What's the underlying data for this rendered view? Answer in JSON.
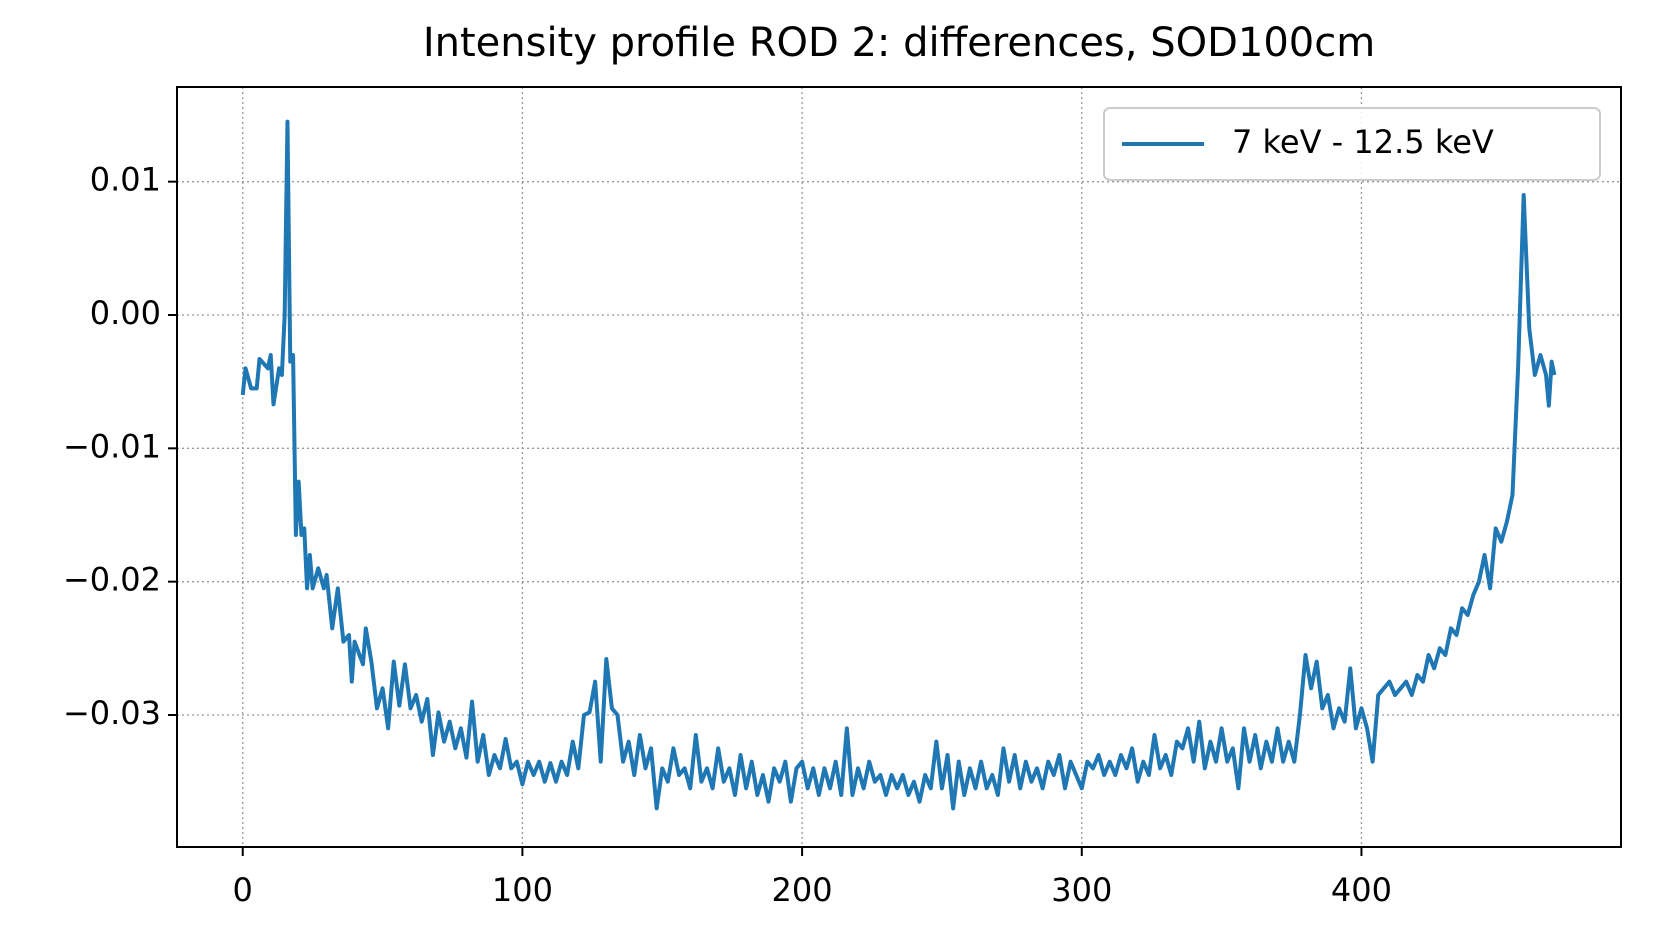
{
  "chart_data": {
    "type": "line",
    "title": "Intensity profile ROD 2: differences, SOD100cm",
    "x": [
      0,
      1,
      3,
      5,
      6,
      9,
      10,
      11,
      13,
      14,
      15,
      16,
      17,
      18,
      19,
      20,
      21,
      22,
      23,
      24,
      25,
      27,
      29,
      30,
      32,
      34,
      36,
      38,
      39,
      40,
      43,
      44,
      46,
      48,
      50,
      52,
      54,
      56,
      58,
      60,
      62,
      64,
      66,
      68,
      70,
      72,
      74,
      76,
      78,
      80,
      82,
      84,
      86,
      88,
      90,
      92,
      94,
      96,
      98,
      100,
      102,
      104,
      106,
      108,
      110,
      112,
      114,
      116,
      118,
      120,
      122,
      124,
      126,
      128,
      130,
      132,
      134,
      136,
      138,
      140,
      142,
      144,
      146,
      148,
      150,
      152,
      154,
      156,
      158,
      160,
      162,
      164,
      166,
      168,
      170,
      172,
      174,
      176,
      178,
      180,
      182,
      184,
      186,
      188,
      190,
      192,
      194,
      196,
      198,
      200,
      202,
      204,
      206,
      208,
      210,
      212,
      214,
      216,
      218,
      220,
      222,
      224,
      226,
      228,
      230,
      232,
      234,
      236,
      238,
      240,
      242,
      244,
      246,
      248,
      250,
      252,
      254,
      256,
      258,
      260,
      262,
      264,
      266,
      268,
      270,
      272,
      274,
      276,
      278,
      280,
      282,
      284,
      286,
      288,
      290,
      292,
      294,
      296,
      298,
      300,
      302,
      304,
      306,
      308,
      310,
      312,
      314,
      316,
      318,
      320,
      322,
      324,
      326,
      328,
      330,
      332,
      334,
      336,
      338,
      340,
      342,
      344,
      346,
      348,
      350,
      352,
      354,
      356,
      358,
      360,
      362,
      364,
      366,
      368,
      370,
      372,
      374,
      376,
      378,
      380,
      382,
      384,
      386,
      388,
      390,
      392,
      394,
      396,
      398,
      400,
      402,
      404,
      406,
      408,
      410,
      412,
      414,
      416,
      418,
      420,
      422,
      424,
      426,
      428,
      430,
      432,
      434,
      436,
      438,
      440,
      442,
      444,
      446,
      448,
      450,
      452,
      454,
      456,
      458,
      460,
      462,
      464,
      466,
      467,
      468,
      469
    ],
    "series": [
      {
        "name": "7 keV - 12.5 keV",
        "color": "#1f77b4",
        "values": [
          -0.006,
          -0.004,
          -0.0055,
          -0.0055,
          -0.0033,
          -0.004,
          -0.003,
          -0.0067,
          -0.004,
          -0.0045,
          0,
          0.0145,
          -0.0035,
          -0.003,
          -0.0165,
          -0.0125,
          -0.0165,
          -0.016,
          -0.0205,
          -0.018,
          -0.0205,
          -0.019,
          -0.0205,
          -0.0195,
          -0.0235,
          -0.0205,
          -0.0245,
          -0.024,
          -0.0275,
          -0.0245,
          -0.0262,
          -0.0235,
          -0.026,
          -0.0295,
          -0.028,
          -0.031,
          -0.026,
          -0.0293,
          -0.0262,
          -0.0295,
          -0.0285,
          -0.0305,
          -0.0288,
          -0.033,
          -0.0298,
          -0.032,
          -0.0305,
          -0.0325,
          -0.031,
          -0.0332,
          -0.029,
          -0.0335,
          -0.0315,
          -0.0345,
          -0.033,
          -0.034,
          -0.0318,
          -0.034,
          -0.0335,
          -0.0352,
          -0.0335,
          -0.0345,
          -0.0335,
          -0.035,
          -0.0336,
          -0.035,
          -0.0335,
          -0.0345,
          -0.032,
          -0.034,
          -0.03,
          -0.0298,
          -0.0275,
          -0.0335,
          -0.0258,
          -0.0295,
          -0.03,
          -0.0335,
          -0.032,
          -0.0345,
          -0.0315,
          -0.034,
          -0.0325,
          -0.037,
          -0.034,
          -0.035,
          -0.0325,
          -0.0345,
          -0.034,
          -0.0355,
          -0.0315,
          -0.035,
          -0.034,
          -0.0355,
          -0.0325,
          -0.035,
          -0.034,
          -0.036,
          -0.033,
          -0.0355,
          -0.0335,
          -0.036,
          -0.0345,
          -0.0365,
          -0.034,
          -0.035,
          -0.0335,
          -0.0365,
          -0.034,
          -0.0335,
          -0.0355,
          -0.034,
          -0.036,
          -0.034,
          -0.0355,
          -0.0335,
          -0.036,
          -0.031,
          -0.036,
          -0.034,
          -0.0355,
          -0.0335,
          -0.035,
          -0.0345,
          -0.036,
          -0.0345,
          -0.0355,
          -0.0345,
          -0.036,
          -0.035,
          -0.0365,
          -0.0345,
          -0.0355,
          -0.032,
          -0.0355,
          -0.033,
          -0.037,
          -0.0335,
          -0.036,
          -0.034,
          -0.0355,
          -0.0335,
          -0.0355,
          -0.0345,
          -0.036,
          -0.0325,
          -0.035,
          -0.033,
          -0.0355,
          -0.0335,
          -0.035,
          -0.034,
          -0.0355,
          -0.0335,
          -0.0345,
          -0.033,
          -0.0355,
          -0.0335,
          -0.0345,
          -0.0355,
          -0.0335,
          -0.034,
          -0.033,
          -0.0345,
          -0.0335,
          -0.0345,
          -0.033,
          -0.034,
          -0.0325,
          -0.035,
          -0.0335,
          -0.0345,
          -0.0315,
          -0.034,
          -0.033,
          -0.0345,
          -0.032,
          -0.0325,
          -0.031,
          -0.0335,
          -0.0305,
          -0.034,
          -0.032,
          -0.0335,
          -0.031,
          -0.0335,
          -0.0325,
          -0.0355,
          -0.031,
          -0.0335,
          -0.0315,
          -0.034,
          -0.032,
          -0.0335,
          -0.031,
          -0.0335,
          -0.032,
          -0.0335,
          -0.03,
          -0.0255,
          -0.028,
          -0.026,
          -0.0295,
          -0.0285,
          -0.031,
          -0.0295,
          -0.0305,
          -0.0265,
          -0.031,
          -0.0295,
          -0.031,
          -0.0335,
          -0.0285,
          -0.028,
          -0.0275,
          -0.0285,
          -0.028,
          -0.0275,
          -0.0285,
          -0.027,
          -0.0275,
          -0.0255,
          -0.0265,
          -0.025,
          -0.0255,
          -0.0235,
          -0.024,
          -0.022,
          -0.0225,
          -0.021,
          -0.02,
          -0.018,
          -0.0205,
          -0.016,
          -0.017,
          -0.0155,
          -0.0135,
          -0.004,
          0.009,
          -0.001,
          -0.0045,
          -0.003,
          -0.0045,
          -0.0068,
          -0.0035,
          -0.0045
        ]
      }
    ],
    "xlim": [
      -23.5,
      492.8
    ],
    "ylim": [
      -0.0399,
      0.0171
    ],
    "xticks": [
      0,
      100,
      200,
      300,
      400
    ],
    "yticks": [
      {
        "value": -0.03,
        "label": "−0.03"
      },
      {
        "value": -0.02,
        "label": "−0.02"
      },
      {
        "value": -0.01,
        "label": "−0.01"
      },
      {
        "value": 0,
        "label": "0.00"
      },
      0.01
    ],
    "grid": true,
    "legend": "upper right"
  }
}
